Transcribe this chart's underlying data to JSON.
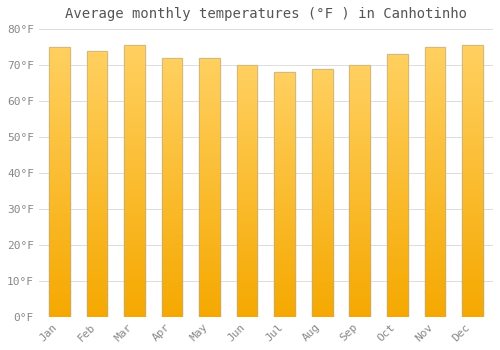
{
  "title": "Average monthly temperatures (°F ) in Canhotinho",
  "months": [
    "Jan",
    "Feb",
    "Mar",
    "Apr",
    "May",
    "Jun",
    "Jul",
    "Aug",
    "Sep",
    "Oct",
    "Nov",
    "Dec"
  ],
  "values": [
    75,
    74,
    75.5,
    72,
    72,
    70,
    68,
    69,
    70,
    73,
    75,
    75.5
  ],
  "ylim": [
    0,
    80
  ],
  "yticks": [
    0,
    10,
    20,
    30,
    40,
    50,
    60,
    70,
    80
  ],
  "ytick_labels": [
    "0°F",
    "10°F",
    "20°F",
    "30°F",
    "40°F",
    "50°F",
    "60°F",
    "70°F",
    "80°F"
  ],
  "bar_color_bottom": "#F5A800",
  "bar_color_top": "#FFD060",
  "background_color": "#FFFFFF",
  "grid_color": "#DDDDDD",
  "title_fontsize": 10,
  "tick_fontsize": 8,
  "bar_width": 0.55,
  "gradient_steps": 100
}
